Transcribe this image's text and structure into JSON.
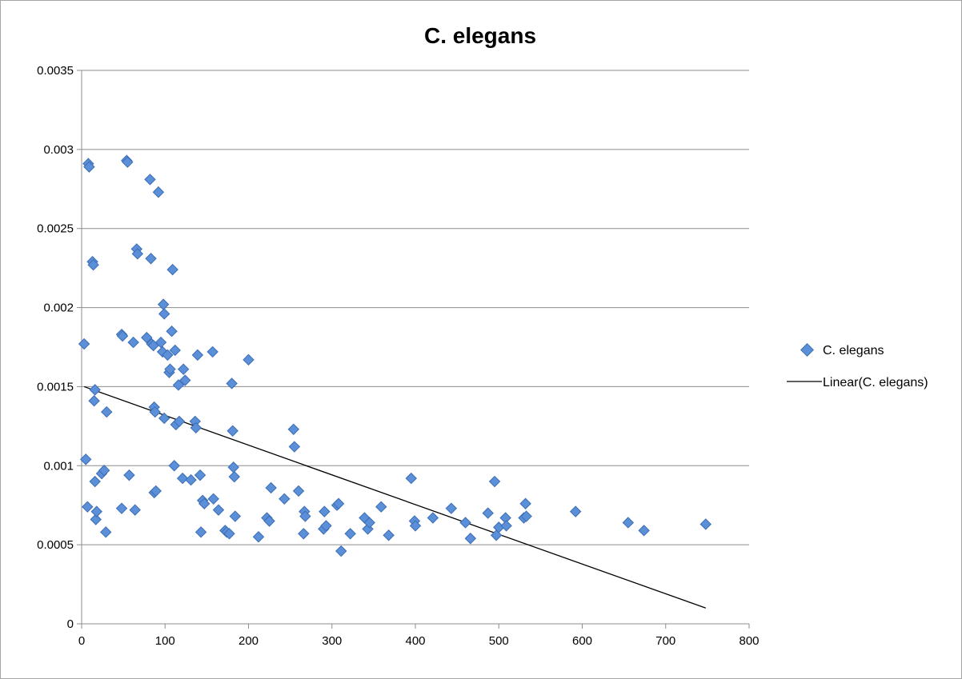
{
  "chart_data": {
    "type": "scatter",
    "title": "C. elegans",
    "xlabel": "",
    "ylabel": "",
    "xlim": [
      0,
      800
    ],
    "ylim": [
      0,
      0.0035
    ],
    "xticks": [
      "0",
      "100",
      "200",
      "300",
      "400",
      "500",
      "600",
      "700",
      "800"
    ],
    "yticks": [
      "0",
      "0.0005",
      "0.001",
      "0.0015",
      "0.002",
      "0.0025",
      "0.003",
      "0.0035"
    ],
    "grid": "horizontal",
    "legend_position": "right",
    "legend": [
      "C. elegans",
      "Linear(C. elegans)"
    ],
    "colors": {
      "marker": "#5b8fd8",
      "marker_edge": "#3b6db5",
      "trendline": "#000000",
      "grid": "#8c8c8c"
    },
    "series": [
      {
        "name": "C. elegans",
        "points": [
          [
            3,
            0.00177
          ],
          [
            5,
            0.00104
          ],
          [
            7,
            0.00074
          ],
          [
            8,
            0.00291
          ],
          [
            9,
            0.00289
          ],
          [
            13,
            0.00229
          ],
          [
            14,
            0.00227
          ],
          [
            15,
            0.00141
          ],
          [
            16,
            0.00148
          ],
          [
            16,
            0.0009
          ],
          [
            17,
            0.00066
          ],
          [
            18,
            0.00071
          ],
          [
            24,
            0.00095
          ],
          [
            27,
            0.00097
          ],
          [
            29,
            0.00058
          ],
          [
            30,
            0.00134
          ],
          [
            48,
            0.00183
          ],
          [
            49,
            0.00182
          ],
          [
            48,
            0.00073
          ],
          [
            54,
            0.00293
          ],
          [
            55,
            0.00292
          ],
          [
            57,
            0.00094
          ],
          [
            62,
            0.00178
          ],
          [
            64,
            0.00072
          ],
          [
            66,
            0.00237
          ],
          [
            67,
            0.00234
          ],
          [
            78,
            0.00181
          ],
          [
            82,
            0.00281
          ],
          [
            83,
            0.00231
          ],
          [
            84,
            0.00177
          ],
          [
            86,
            0.00176
          ],
          [
            87,
            0.00137
          ],
          [
            88,
            0.00134
          ],
          [
            87,
            0.00083
          ],
          [
            89,
            0.00084
          ],
          [
            92,
            0.00273
          ],
          [
            95,
            0.00178
          ],
          [
            97,
            0.00172
          ],
          [
            98,
            0.00202
          ],
          [
            99,
            0.00196
          ],
          [
            99,
            0.0013
          ],
          [
            103,
            0.0017
          ],
          [
            105,
            0.00159
          ],
          [
            106,
            0.00161
          ],
          [
            108,
            0.00185
          ],
          [
            109,
            0.00224
          ],
          [
            111,
            0.001
          ],
          [
            112,
            0.00173
          ],
          [
            113,
            0.00126
          ],
          [
            116,
            0.00151
          ],
          [
            117,
            0.00128
          ],
          [
            121,
            0.00092
          ],
          [
            122,
            0.00161
          ],
          [
            124,
            0.00154
          ],
          [
            131,
            0.00091
          ],
          [
            136,
            0.00128
          ],
          [
            137,
            0.00124
          ],
          [
            139,
            0.0017
          ],
          [
            142,
            0.00094
          ],
          [
            143,
            0.00058
          ],
          [
            145,
            0.00078
          ],
          [
            147,
            0.00076
          ],
          [
            157,
            0.00172
          ],
          [
            158,
            0.00079
          ],
          [
            164,
            0.00072
          ],
          [
            172,
            0.00059
          ],
          [
            174,
            0.00058
          ],
          [
            177,
            0.00057
          ],
          [
            180,
            0.00152
          ],
          [
            181,
            0.00122
          ],
          [
            182,
            0.00099
          ],
          [
            183,
            0.00093
          ],
          [
            184,
            0.00068
          ],
          [
            200,
            0.00167
          ],
          [
            212,
            0.00055
          ],
          [
            222,
            0.00067
          ],
          [
            225,
            0.00065
          ],
          [
            227,
            0.00086
          ],
          [
            243,
            0.00079
          ],
          [
            254,
            0.00123
          ],
          [
            255,
            0.00112
          ],
          [
            260,
            0.00084
          ],
          [
            266,
            0.00057
          ],
          [
            267,
            0.00071
          ],
          [
            268,
            0.00068
          ],
          [
            290,
            0.0006
          ],
          [
            291,
            0.00071
          ],
          [
            293,
            0.00062
          ],
          [
            306,
            0.00075
          ],
          [
            308,
            0.00076
          ],
          [
            311,
            0.00046
          ],
          [
            322,
            0.00057
          ],
          [
            339,
            0.00067
          ],
          [
            343,
            0.0006
          ],
          [
            345,
            0.00064
          ],
          [
            359,
            0.00074
          ],
          [
            368,
            0.00056
          ],
          [
            395,
            0.00092
          ],
          [
            399,
            0.00065
          ],
          [
            400,
            0.00062
          ],
          [
            421,
            0.00067
          ],
          [
            443,
            0.00073
          ],
          [
            460,
            0.00064
          ],
          [
            466,
            0.00054
          ],
          [
            487,
            0.0007
          ],
          [
            495,
            0.0009
          ],
          [
            497,
            0.00056
          ],
          [
            500,
            0.00061
          ],
          [
            508,
            0.00067
          ],
          [
            509,
            0.00062
          ],
          [
            530,
            0.00067
          ],
          [
            532,
            0.00076
          ],
          [
            533,
            0.00068
          ],
          [
            592,
            0.00071
          ],
          [
            655,
            0.00064
          ],
          [
            674,
            0.00059
          ],
          [
            748,
            0.00063
          ]
        ]
      }
    ],
    "trendline": {
      "name": "Linear(C. elegans)",
      "x": [
        3,
        748
      ],
      "y": [
        0.0015,
        0.0001
      ]
    }
  }
}
